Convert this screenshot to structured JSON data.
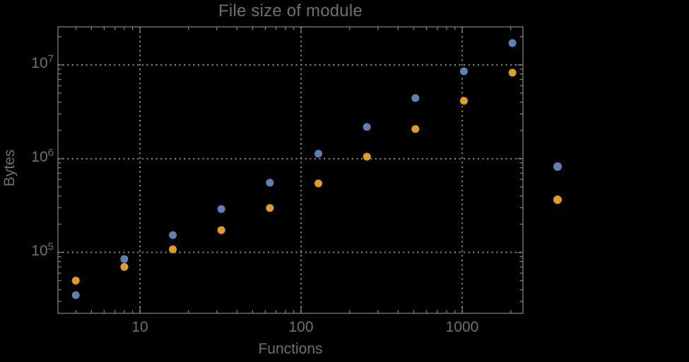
{
  "title": "File size of module",
  "axes": {
    "x_label": "Functions",
    "y_label": "Bytes"
  },
  "x_tick_labels": [
    {
      "label": "10"
    },
    {
      "label": "100"
    },
    {
      "label": "1000"
    }
  ],
  "y_tick_labels": [
    {
      "base": "10",
      "exp": "7"
    },
    {
      "base": "10",
      "exp": "6"
    },
    {
      "base": "10",
      "exp": "5"
    }
  ],
  "colors": {
    "background": "#000000",
    "text": "#6f6f6f",
    "frame": "#7d7d7d",
    "grid": "#8f8f8f",
    "series_blue": "#5E81B5",
    "series_orange": "#E19C24"
  },
  "legend": {
    "markers": [
      {
        "color": "#5E81B5"
      },
      {
        "color": "#E19C24"
      }
    ]
  },
  "chart_data": {
    "type": "scatter",
    "title": "File size of module",
    "xlabel": "Functions",
    "ylabel": "Bytes",
    "x_scale": "log",
    "y_scale": "log",
    "grid": "dotted",
    "legend_position": "right-outside",
    "x": [
      4,
      8,
      16,
      32,
      64,
      128,
      256,
      512,
      1024,
      2048
    ],
    "series": [
      {
        "name": "blue",
        "color": "#5E81B5",
        "values": [
          35000,
          85000,
          153000,
          290000,
          555000,
          1130000,
          2180000,
          4430000,
          8550000,
          17100000
        ]
      },
      {
        "name": "orange",
        "color": "#E19C24",
        "values": [
          50000,
          70000,
          108000,
          173000,
          298000,
          545000,
          1050000,
          2070000,
          4140000,
          8260000
        ]
      }
    ],
    "x_ticks": [
      10,
      100,
      1000
    ],
    "y_ticks": [
      100000,
      1000000,
      10000000
    ],
    "xlim": [
      3.1,
      2380
    ],
    "ylim": [
      22400,
      25500000
    ]
  }
}
